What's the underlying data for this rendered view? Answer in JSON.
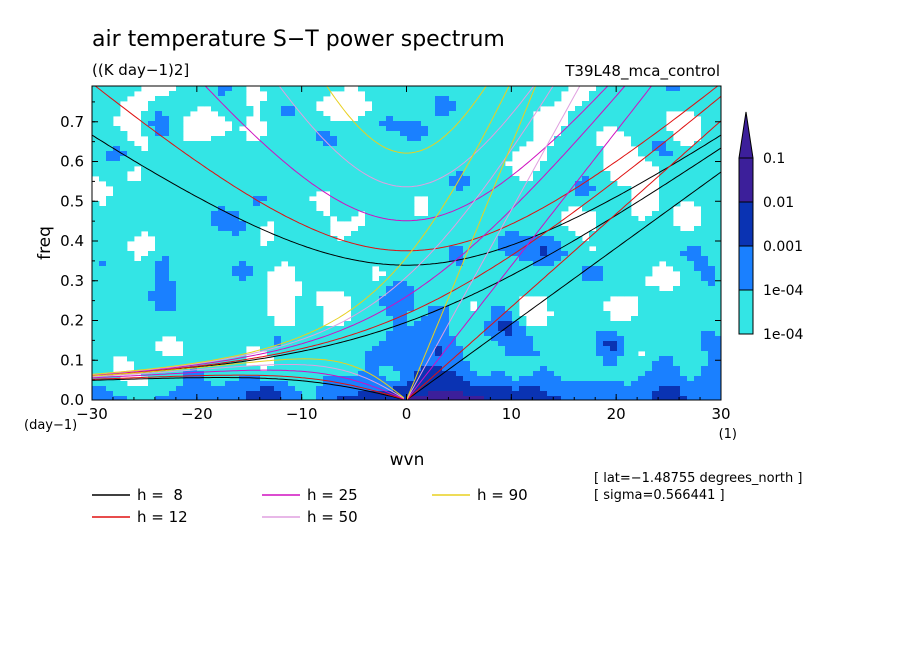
{
  "chart_data": {
    "type": "heatmap",
    "title": "air temperature S−T power spectrum",
    "units": "((K day−1)2]",
    "run_label": "T39L48_mca_control",
    "xlabel": "wvn",
    "ylabel": "freq",
    "x_units": "(1)",
    "y_units": "(day−1)",
    "xlim": [
      -30,
      30
    ],
    "ylim": [
      0,
      0.79
    ],
    "x_ticks": [
      {
        "value": -30,
        "label": "−30"
      },
      {
        "value": -20,
        "label": "−20"
      },
      {
        "value": -10,
        "label": "−10"
      },
      {
        "value": 0,
        "label": "0"
      },
      {
        "value": 10,
        "label": "10"
      },
      {
        "value": 20,
        "label": "20"
      },
      {
        "value": 30,
        "label": "30"
      }
    ],
    "y_ticks": [
      {
        "value": 0,
        "label": "0.0"
      },
      {
        "value": 0.1,
        "label": "0.1"
      },
      {
        "value": 0.2,
        "label": "0.2"
      },
      {
        "value": 0.3,
        "label": "0.3"
      },
      {
        "value": 0.4,
        "label": "0.4"
      },
      {
        "value": 0.5,
        "label": "0.5"
      },
      {
        "value": 0.6,
        "label": "0.6"
      },
      {
        "value": 0.7,
        "label": "0.7"
      }
    ],
    "color_levels": [
      {
        "value": 0.0001,
        "label": "1e-04",
        "color": "#33e5e5"
      },
      {
        "value": 0.001,
        "label": "0.001",
        "color": "#1a80ff"
      },
      {
        "value": 0.01,
        "label": "0.01",
        "color": "#0a33b3"
      },
      {
        "value": 0.1,
        "label": "0.1",
        "color": "#3c1f9a"
      }
    ],
    "colorbar_extend": "max",
    "dispersion_curves": [
      {
        "label": "h =  8",
        "h": 8,
        "color": "#000000"
      },
      {
        "label": "h = 12",
        "h": 12,
        "color": "#e01010"
      },
      {
        "label": "h = 25",
        "h": 25,
        "color": "#d010c0"
      },
      {
        "label": "h = 50",
        "h": 50,
        "color": "#e0a0e0"
      },
      {
        "label": "h = 90",
        "h": 90,
        "color": "#e8d020"
      }
    ],
    "annotations": [
      "[ lat=−1.48755 degrees_north ]",
      "[ sigma=0.566441 ]"
    ]
  }
}
